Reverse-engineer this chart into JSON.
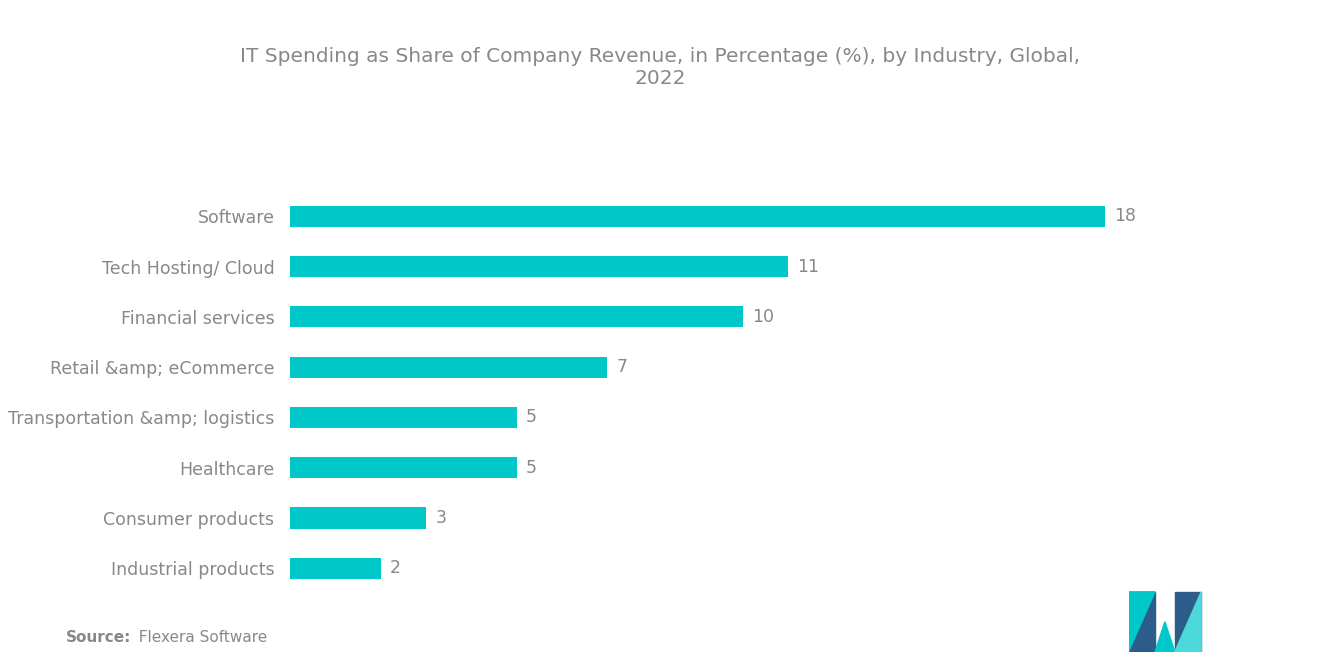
{
  "title": "IT Spending as Share of Company Revenue, in Percentage (%), by Industry, Global,\n2022",
  "categories": [
    "Industrial products",
    "Consumer products",
    "Healthcare",
    "Transportation &amp; logistics",
    "Retail &amp; eCommerce",
    "Financial services",
    "Tech Hosting/ Cloud",
    "Software"
  ],
  "values": [
    2,
    3,
    5,
    5,
    7,
    10,
    11,
    18
  ],
  "bar_color": "#00C8C8",
  "label_color": "#888888",
  "value_color": "#888888",
  "title_color": "#888888",
  "background_color": "#ffffff",
  "source_bold": "Source:",
  "source_rest": "  Flexera Software",
  "xlim": [
    0,
    21
  ],
  "bar_height": 0.42,
  "title_fontsize": 14.5,
  "label_fontsize": 12.5,
  "value_fontsize": 12.5,
  "source_fontsize": 11
}
